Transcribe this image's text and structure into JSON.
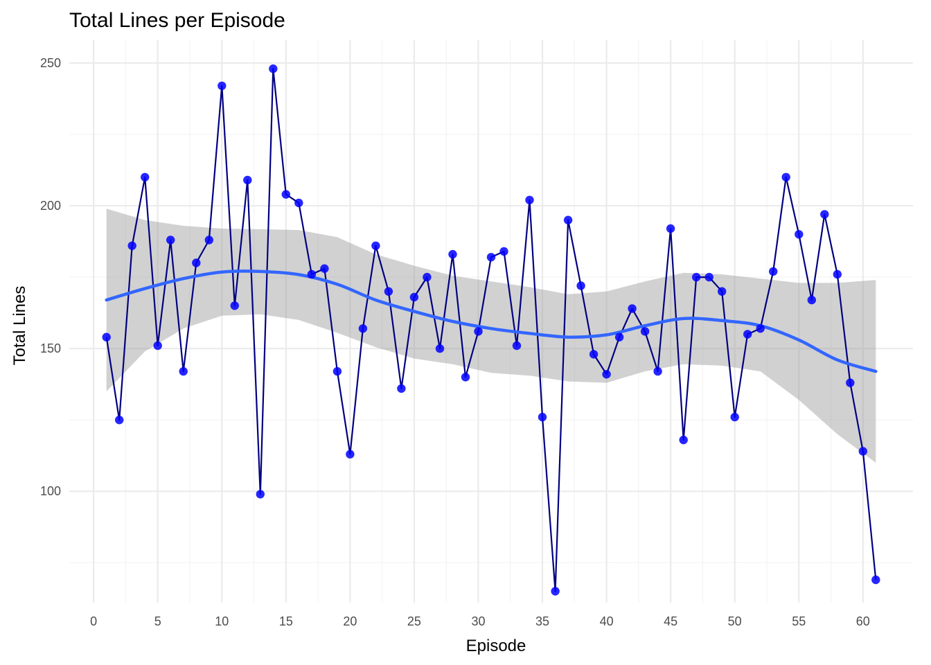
{
  "chart_data": {
    "type": "line",
    "title": "Total Lines per Episode",
    "xlabel": "Episode",
    "ylabel": "Total Lines",
    "xlim": [
      -1.9,
      63.9
    ],
    "ylim": [
      61,
      258
    ],
    "x_ticks": [
      0,
      5,
      10,
      15,
      20,
      25,
      30,
      35,
      40,
      45,
      50,
      55,
      60
    ],
    "y_ticks": [
      100,
      150,
      200,
      250
    ],
    "grid": true,
    "legend": "none",
    "colors": {
      "line": "#000080",
      "points": "#0000ff",
      "smooth": "#3366ff",
      "ribbon": "#999999"
    },
    "series": [
      {
        "x": [
          1,
          2,
          3,
          4,
          5,
          6,
          7,
          8,
          9,
          10,
          11,
          12,
          13,
          14,
          15,
          16,
          17,
          18,
          19,
          20,
          21,
          22,
          23,
          24,
          25,
          26,
          27,
          28,
          29,
          30,
          31,
          32,
          33,
          34,
          35,
          36,
          37,
          38,
          39,
          40,
          41,
          42,
          43,
          44,
          45,
          46,
          47,
          48,
          49,
          50,
          51,
          52,
          53,
          54,
          55,
          56,
          57,
          58,
          59,
          60,
          61
        ],
        "values": [
          154,
          125,
          186,
          210,
          151,
          188,
          142,
          180,
          188,
          242,
          165,
          209,
          99,
          248,
          204,
          201,
          176,
          178,
          142,
          113,
          157,
          186,
          170,
          136,
          168,
          175,
          150,
          183,
          140,
          156,
          182,
          184,
          151,
          202,
          126,
          65,
          195,
          172,
          148,
          141,
          154,
          164,
          156,
          142,
          192,
          118,
          175,
          175,
          170,
          126,
          155,
          157,
          177,
          210,
          190,
          167,
          197,
          176,
          138,
          114,
          69
        ]
      }
    ],
    "smooth": {
      "x": [
        1,
        4,
        7,
        10,
        13,
        16,
        19,
        22,
        25,
        28,
        31,
        34,
        37,
        40,
        43,
        46,
        49,
        52,
        55,
        58,
        61
      ],
      "fit": [
        167,
        171,
        174.5,
        176.8,
        177,
        175.9,
        172.5,
        167,
        163,
        159.5,
        157,
        155.3,
        154,
        154.8,
        158,
        160.5,
        159.8,
        158,
        153,
        146,
        142
      ],
      "upper": [
        199,
        195,
        193,
        192,
        191.8,
        191.5,
        189,
        183,
        179,
        175.5,
        173.5,
        171.5,
        169,
        170,
        173.5,
        176.5,
        176,
        174.5,
        173,
        173,
        174
      ],
      "lower": [
        135,
        149,
        157,
        161.5,
        162,
        160,
        155.5,
        150.5,
        146.5,
        144.5,
        141.5,
        140.5,
        138.5,
        138,
        142,
        144.5,
        144,
        142,
        132,
        120,
        110
      ]
    }
  }
}
